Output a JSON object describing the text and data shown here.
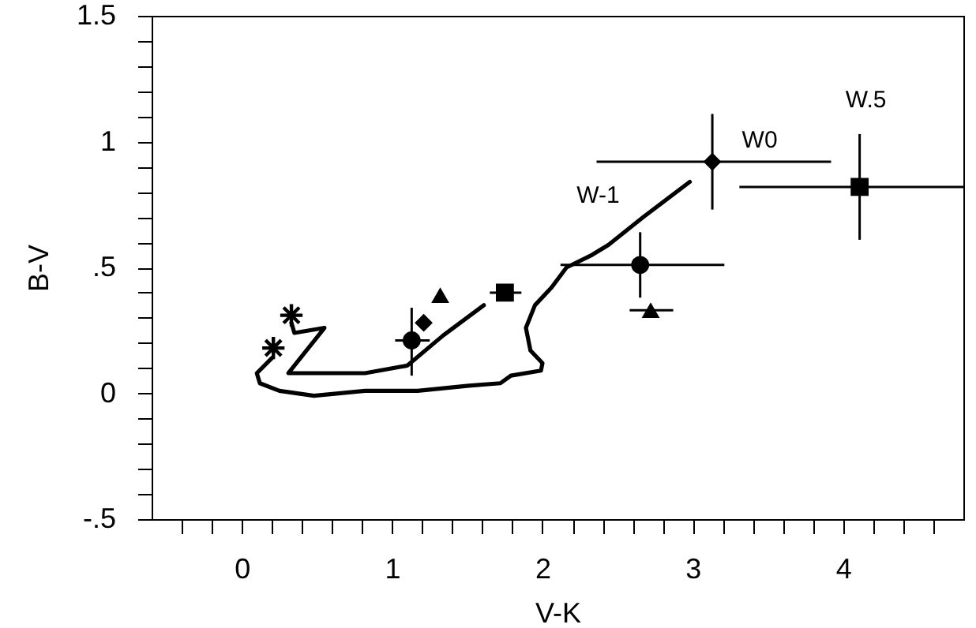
{
  "chart_data": {
    "type": "scatter",
    "xlabel": "V-K",
    "ylabel": "B-V",
    "xlim": [
      -0.6,
      4.8
    ],
    "ylim": [
      -0.5,
      1.5
    ],
    "xticks": [
      {
        "value": -0.4,
        "label": null
      },
      {
        "value": -0.2,
        "label": null
      },
      0,
      {
        "value": 0.2,
        "label": null
      },
      {
        "value": 0.4,
        "label": null
      },
      {
        "value": 0.6,
        "label": null
      },
      {
        "value": 0.8,
        "label": null
      },
      1,
      {
        "value": 1.2,
        "label": null
      },
      {
        "value": 1.4,
        "label": null
      },
      {
        "value": 1.6,
        "label": null
      },
      {
        "value": 1.8,
        "label": null
      },
      2,
      {
        "value": 2.2,
        "label": null
      },
      {
        "value": 2.4,
        "label": null
      },
      {
        "value": 2.6,
        "label": null
      },
      {
        "value": 2.8,
        "label": null
      },
      3,
      {
        "value": 3.2,
        "label": null
      },
      {
        "value": 3.4,
        "label": null
      },
      {
        "value": 3.6,
        "label": null
      },
      {
        "value": 3.8,
        "label": null
      },
      4,
      {
        "value": 4.2,
        "label": null
      },
      {
        "value": 4.4,
        "label": null
      },
      {
        "value": 4.6,
        "label": null
      }
    ],
    "yticks": [
      {
        "value": -0.5,
        "label": "-.5"
      },
      {
        "value": -0.4,
        "label": null
      },
      {
        "value": -0.3,
        "label": null
      },
      {
        "value": -0.2,
        "label": null
      },
      {
        "value": -0.1,
        "label": null
      },
      0,
      {
        "value": 0.1,
        "label": null
      },
      {
        "value": 0.2,
        "label": null
      },
      {
        "value": 0.3,
        "label": null
      },
      {
        "value": 0.4,
        "label": null
      },
      {
        "value": 0.5,
        "label": ".5"
      },
      {
        "value": 0.6,
        "label": null
      },
      {
        "value": 0.7,
        "label": null
      },
      {
        "value": 0.8,
        "label": null
      },
      {
        "value": 0.9,
        "label": null
      },
      1,
      {
        "value": 1.1,
        "label": null
      },
      {
        "value": 1.2,
        "label": null
      },
      {
        "value": 1.3,
        "label": null
      },
      {
        "value": 1.4,
        "label": null
      },
      1.5
    ],
    "grid": false,
    "series": [
      {
        "type": "line",
        "color": "#000000",
        "marker": "none",
        "line_style": "solid",
        "x": [
          0.2,
          0.1,
          0.12,
          0.25,
          0.48,
          0.82,
          1.17,
          1.51,
          1.72,
          1.79,
          1.99,
          2.0,
          1.92,
          1.89,
          1.95,
          2.06,
          2.16,
          2.33,
          2.44,
          2.67,
          2.98
        ],
        "values": [
          0.14,
          0.08,
          0.04,
          0.01,
          -0.01,
          0.01,
          0.01,
          0.03,
          0.04,
          0.07,
          0.09,
          0.12,
          0.17,
          0.26,
          0.35,
          0.42,
          0.5,
          0.55,
          0.59,
          0.7,
          0.84
        ]
      },
      {
        "type": "line",
        "color": "#000000",
        "marker": "none",
        "line_style": "solid",
        "x": [
          0.33,
          0.35,
          0.55,
          0.31,
          0.82,
          1.1,
          1.34,
          1.61
        ],
        "values": [
          0.28,
          0.24,
          0.26,
          0.08,
          0.08,
          0.11,
          0.23,
          0.35
        ]
      },
      {
        "color": "#000000",
        "marker": "diamond",
        "x": [
          3.13
        ],
        "values": [
          0.92
        ],
        "errors": [
          [
            0.73,
            1.11
          ]
        ],
        "xerrors": [
          [
            2.36,
            3.92
          ]
        ]
      },
      {
        "color": "#000000",
        "marker": "square",
        "x": [
          4.11
        ],
        "values": [
          0.82
        ],
        "errors": [
          [
            0.61,
            1.03
          ]
        ],
        "xerrors": [
          [
            3.31,
            4.8
          ]
        ]
      },
      {
        "color": "#000000",
        "marker": "circle",
        "x": [
          2.65
        ],
        "values": [
          0.51
        ],
        "errors": [
          [
            0.38,
            0.64
          ]
        ],
        "xerrors": [
          [
            2.12,
            3.21
          ]
        ]
      },
      {
        "color": "#000000",
        "marker": "triangle",
        "x": [
          2.72
        ],
        "values": [
          0.33
        ],
        "xerrors": [
          [
            2.58,
            2.87
          ]
        ]
      },
      {
        "color": "#000000",
        "marker": "square",
        "x": [
          1.75
        ],
        "values": [
          0.4
        ],
        "xerrors": [
          [
            1.65,
            1.86
          ]
        ]
      },
      {
        "color": "#000000",
        "marker": "triangle",
        "x": [
          1.32
        ],
        "values": [
          0.39
        ]
      },
      {
        "color": "#000000",
        "marker": "diamond",
        "x": [
          1.21
        ],
        "values": [
          0.28
        ]
      },
      {
        "color": "#000000",
        "marker": "circle",
        "x": [
          1.13
        ],
        "values": [
          0.21
        ],
        "errors": [
          [
            0.07,
            0.34
          ]
        ],
        "xerrors": [
          [
            1.02,
            1.25
          ]
        ]
      },
      {
        "color": "#000000",
        "marker": "cross",
        "x": [
          0.33,
          0.21
        ],
        "values": [
          0.31,
          0.18
        ]
      }
    ],
    "annotations": [
      {
        "text": "W0",
        "x": 3.13,
        "y": 0.92
      },
      {
        "text": "W.5",
        "x": 4.11,
        "y": 1.03
      },
      {
        "text": "W-1",
        "x": 2.98,
        "y": 0.84
      }
    ]
  }
}
